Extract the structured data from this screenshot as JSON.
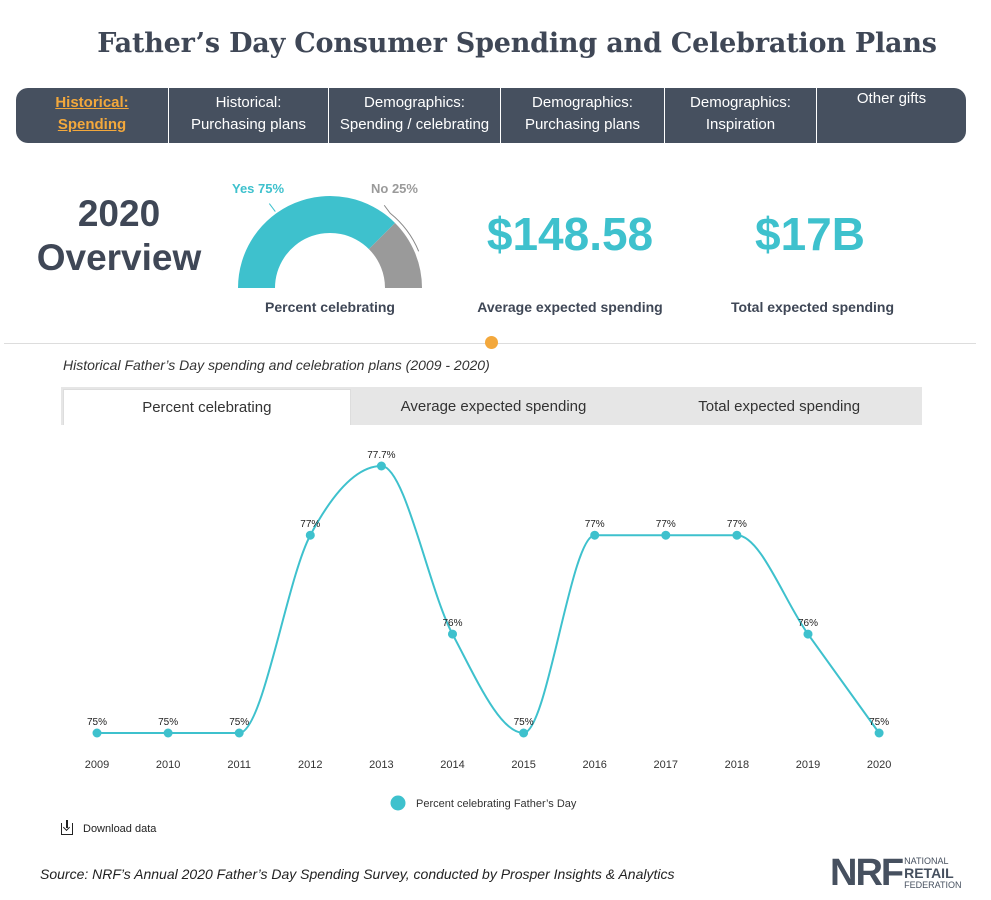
{
  "page_title": "Father’s Day Consumer Spending and Celebration Plans",
  "nav_tabs": [
    {
      "line1": "Historical:",
      "line2": "Spending",
      "active": true
    },
    {
      "line1": "Historical:",
      "line2": "Purchasing plans",
      "active": false
    },
    {
      "line1": "Demographics:",
      "line2": "Spending / celebrating",
      "active": false
    },
    {
      "line1": "Demographics:",
      "line2": "Purchasing plans",
      "active": false
    },
    {
      "line1": "Demographics:",
      "line2": "Inspiration",
      "active": false
    },
    {
      "line1": "Other gifts",
      "line2": "",
      "active": false
    }
  ],
  "overview": {
    "title_line1": "2020",
    "title_line2": "Overview",
    "gauge": {
      "yes_label": "Yes 75%",
      "no_label": "No 25%",
      "yes_value": 75,
      "no_value": 25,
      "caption": "Percent celebrating"
    },
    "avg_spending_value": "$148.58",
    "avg_spending_label": "Average expected spending",
    "total_spending_value": "$17B",
    "total_spending_label": "Total expected spending"
  },
  "chart_subtitle": "Historical Father’s Day spending and celebration plans (2009 - 2020)",
  "chart_tabs": [
    {
      "label": "Percent celebrating",
      "active": true
    },
    {
      "label": "Average expected spending",
      "active": false
    },
    {
      "label": "Total expected spending",
      "active": false
    }
  ],
  "chart_data": {
    "type": "line",
    "title": "",
    "xlabel": "",
    "ylabel": "",
    "categories": [
      "2009",
      "2010",
      "2011",
      "2012",
      "2013",
      "2014",
      "2015",
      "2016",
      "2017",
      "2018",
      "2019",
      "2020"
    ],
    "series": [
      {
        "name": "Percent celebrating Father’s Day",
        "values": [
          75,
          75,
          75,
          77,
          77.7,
          76,
          75,
          77,
          77,
          77,
          76,
          75
        ],
        "labels": [
          "75%",
          "75%",
          "75%",
          "77%",
          "77.7%",
          "76%",
          "75%",
          "77%",
          "77%",
          "77%",
          "76%",
          "75%"
        ]
      }
    ],
    "legend_position": "bottom",
    "grid": false,
    "colors": {
      "series": "#3ec1cd"
    }
  },
  "download_label": "Download data",
  "source": "Source: NRF’s Annual 2020 Father’s Day Spending Survey, conducted by Prosper Insights & Analytics",
  "logo": {
    "mark": "NRF",
    "line1": "NATIONAL",
    "line2": "RETAIL",
    "line3": "FEDERATION"
  },
  "colors": {
    "accent": "#3ec1cd",
    "nav_background": "#46505f",
    "active_tab": "#f3a83c",
    "gauge_no": "#9a9a9a",
    "text_dark": "#3f4756"
  }
}
